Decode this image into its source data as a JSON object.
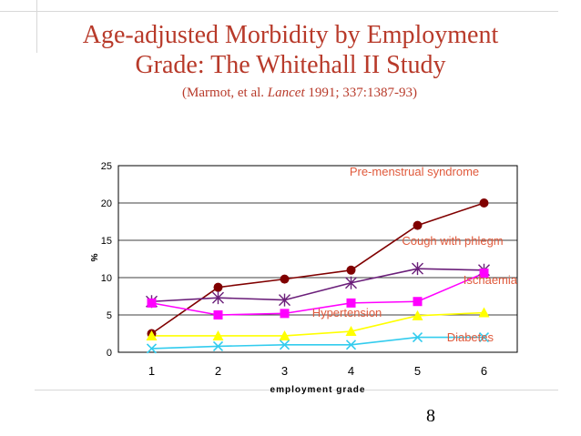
{
  "slide": {
    "title_line1": "Age-adjusted Morbidity by Employment",
    "title_line2": "Grade: The Whitehall II Study",
    "citation_authors": "(Marmot, et al. ",
    "citation_journal": "Lancet",
    "citation_rest": " 1991; 337:1387-93)",
    "page_number": "8"
  },
  "chart_data": {
    "type": "line",
    "title": "",
    "xlabel": "employment grade",
    "ylabel": "%",
    "x": [
      1,
      2,
      3,
      4,
      5,
      6
    ],
    "x_tick_labels": [
      "1",
      "2",
      "3",
      "4",
      "5",
      "6"
    ],
    "ylim": [
      0,
      25
    ],
    "y_ticks": [
      0,
      5,
      10,
      15,
      20,
      25
    ],
    "y_tick_labels": [
      "0",
      "5",
      "10",
      "15",
      "20",
      "25"
    ],
    "grid": "horizontal",
    "series": [
      {
        "name": "Pre-menstrual syndrome",
        "marker": "circle",
        "color": "#800000",
        "values": [
          2.5,
          8.7,
          9.8,
          11.0,
          17.0,
          20.0
        ]
      },
      {
        "name": "Cough with phlegm",
        "marker": "asterisk",
        "color": "#6b1f7a",
        "values": [
          6.8,
          7.3,
          7.0,
          9.3,
          11.2,
          11.0
        ]
      },
      {
        "name": "Ischaemia",
        "marker": "square",
        "color": "#ff00ff",
        "values": [
          6.6,
          5.0,
          5.2,
          6.6,
          6.8,
          10.6
        ]
      },
      {
        "name": "Hypertension",
        "marker": "triangle",
        "color": "#ffff00",
        "values": [
          2.2,
          2.2,
          2.2,
          2.8,
          4.9,
          5.3
        ]
      },
      {
        "name": "Diabetes",
        "marker": "x",
        "color": "#33ccee",
        "values": [
          0.5,
          0.8,
          1.0,
          1.0,
          2.0,
          2.0
        ]
      }
    ]
  }
}
